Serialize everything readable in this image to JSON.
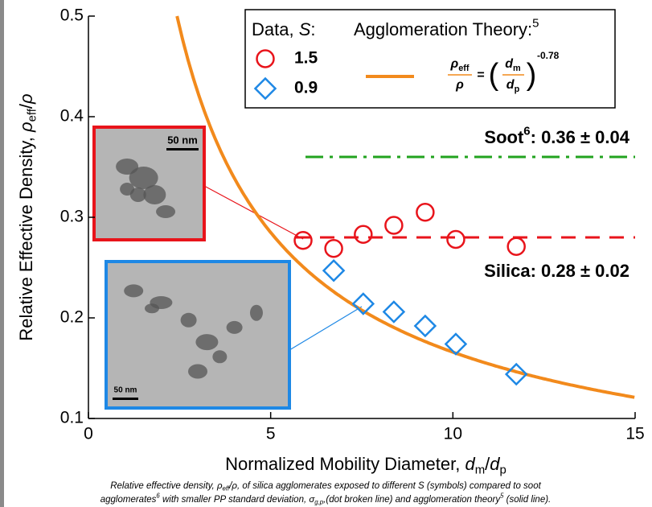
{
  "chart_data": {
    "type": "scatter",
    "x_label": [
      {
        "text": "Normalized Mobility Diameter, "
      },
      {
        "text": "d",
        "style": "italic"
      },
      {
        "text": "m",
        "style": "sub"
      },
      {
        "text": "/"
      },
      {
        "text": "d",
        "style": "italic"
      },
      {
        "text": "p",
        "style": "sub"
      }
    ],
    "y_label": [
      {
        "text": "Relative Effective Density, "
      },
      {
        "text": "ρ",
        "style": "italic"
      },
      {
        "text": "eff",
        "style": "sub"
      },
      {
        "text": "/"
      },
      {
        "text": "ρ",
        "style": "italic"
      }
    ],
    "xlim": [
      0,
      15
    ],
    "xticks": [
      0,
      5,
      10,
      15
    ],
    "ylim": [
      0.1,
      0.5
    ],
    "yticks": [
      0.1,
      0.2,
      0.3,
      0.4,
      0.5
    ],
    "legend_title": [
      {
        "text": "Data, "
      },
      {
        "text": "S",
        "style": "italic"
      },
      {
        "text": ":"
      }
    ],
    "series": [
      {
        "name": "1.5",
        "color": "#e8141b",
        "marker": "circle",
        "x": [
          5.89,
          6.73,
          7.54,
          8.38,
          9.24,
          10.08,
          11.74
        ],
        "values": [
          0.277,
          0.269,
          0.283,
          0.292,
          0.305,
          0.278,
          0.271
        ]
      },
      {
        "name": "0.9",
        "color": "#1e88e5",
        "marker": "diamond",
        "x": [
          6.73,
          7.54,
          8.38,
          9.24,
          10.08,
          11.74
        ],
        "values": [
          0.247,
          0.214,
          0.206,
          0.192,
          0.174,
          0.144
        ]
      }
    ],
    "theory": {
      "title": [
        {
          "text": "Agglomeration Theory:"
        },
        {
          "text": "5",
          "style": "sup"
        }
      ],
      "color": "#f28a1c",
      "exponent": -0.78,
      "lhs_num": [
        {
          "text": "ρ",
          "style": "italic"
        },
        {
          "text": "eff",
          "style": "sub"
        }
      ],
      "lhs_den": [
        {
          "text": "ρ",
          "style": "italic"
        }
      ],
      "equals": "=",
      "open": "(",
      "close": ")",
      "rhs_num": [
        {
          "text": "d",
          "style": "italic"
        },
        {
          "text": "m",
          "style": "sub"
        }
      ],
      "rhs_den": [
        {
          "text": "d",
          "style": "italic"
        },
        {
          "text": "p",
          "style": "sub"
        }
      ]
    },
    "reference_lines": [
      {
        "value": 0.36,
        "color": "#22a31f",
        "dash": "dashdot",
        "label": [
          {
            "text": "Soot"
          },
          {
            "text": "6",
            "style": "sup"
          },
          {
            "text": ": 0.36 ± 0.04"
          }
        ]
      },
      {
        "value": 0.28,
        "color": "#e8141b",
        "dash": "dash",
        "label": [
          {
            "text": "Silica: 0.28 ± 0.02"
          }
        ]
      }
    ],
    "insets": [
      {
        "scale_bar": "50 nm",
        "color": "#e8141b"
      },
      {
        "scale_bar": "50 nm",
        "color": "#1e88e5"
      }
    ],
    "caption": [
      [
        {
          "text": "Relative effective density, "
        },
        {
          "text": "ρ"
        },
        {
          "text": "eff",
          "style": "sub"
        },
        {
          "text": "/ρ, of silica agglomerates exposed to different S (symbols) compared to soot"
        }
      ],
      [
        {
          "text": "agglomerates"
        },
        {
          "text": "6",
          "style": "sup"
        },
        {
          "text": " with smaller PP standard deviation, "
        },
        {
          "text": "σ"
        },
        {
          "text": "g,p",
          "style": "sub"
        },
        {
          "text": ",(dot broken line) and agglomeration theory"
        },
        {
          "text": "5",
          "style": "sup"
        },
        {
          "text": " (solid line)."
        }
      ]
    ]
  }
}
